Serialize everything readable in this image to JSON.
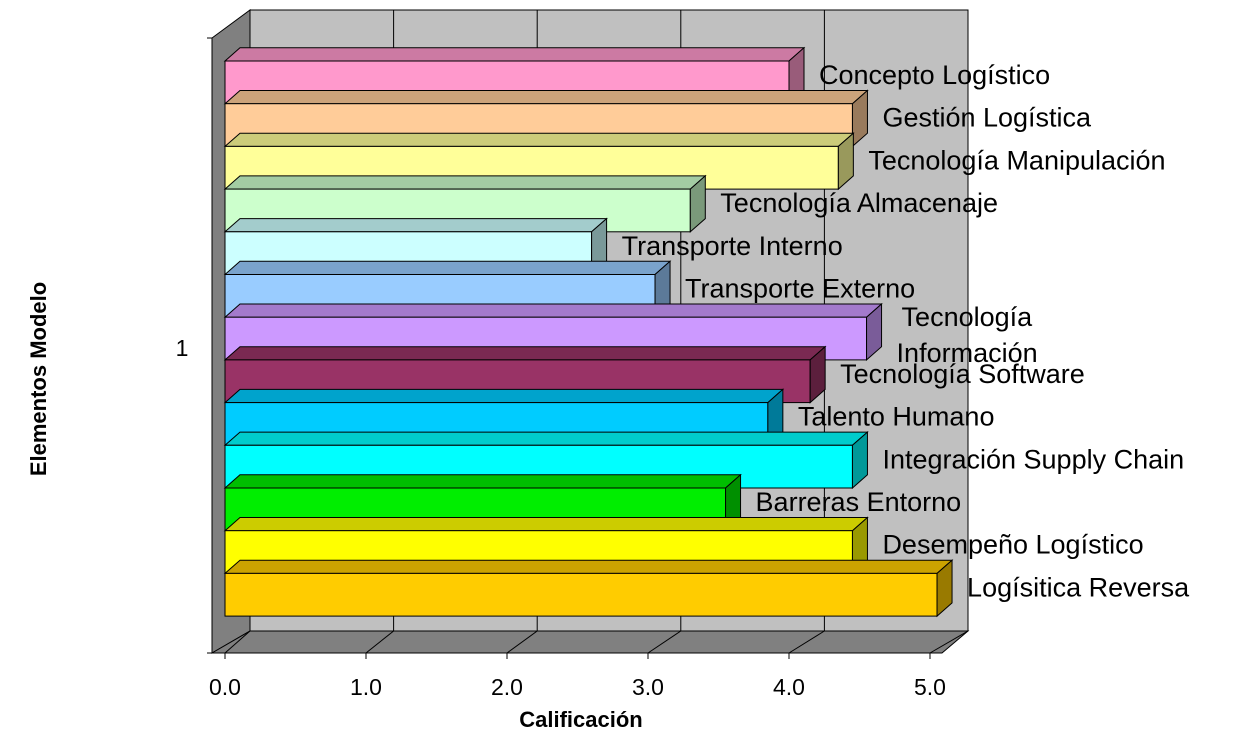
{
  "chart_data": {
    "type": "bar",
    "orientation": "horizontal",
    "style": "3d",
    "category": "1",
    "xlabel": "Calificación",
    "ylabel": "Elementos Modelo",
    "xlim": [
      0,
      5
    ],
    "xticks": [
      "0.0",
      "1.0",
      "2.0",
      "3.0",
      "4.0",
      "5.0"
    ],
    "grid": true,
    "legend": "none",
    "series": [
      {
        "name": "Concepto Logístico",
        "value": 4.0,
        "color": "#ff99cc"
      },
      {
        "name": "Gestión Logística",
        "value": 4.45,
        "color": "#ffcc99"
      },
      {
        "name": "Tecnología Manipulación",
        "value": 4.35,
        "color": "#ffff99"
      },
      {
        "name": "Tecnología Almacenaje",
        "value": 3.3,
        "color": "#ccffcc"
      },
      {
        "name": "Transporte Interno",
        "value": 2.6,
        "color": "#ccffff"
      },
      {
        "name": "Transporte Externo",
        "value": 3.05,
        "color": "#99ccff"
      },
      {
        "name": "Tecnología Información",
        "value": 4.55,
        "color": "#cc99ff"
      },
      {
        "name": "Tecnología Software",
        "value": 4.15,
        "color": "#993366"
      },
      {
        "name": "Talento Humano",
        "value": 3.85,
        "color": "#00ccff"
      },
      {
        "name": "Integración Supply Chain",
        "value": 4.45,
        "color": "#00ffff"
      },
      {
        "name": "Barreras Entorno",
        "value": 3.55,
        "color": "#00ee00"
      },
      {
        "name": "Desempeño Logístico",
        "value": 4.45,
        "color": "#ffff00"
      },
      {
        "name": "Logísitica Reversa",
        "value": 5.05,
        "color": "#ffcc00"
      }
    ]
  }
}
